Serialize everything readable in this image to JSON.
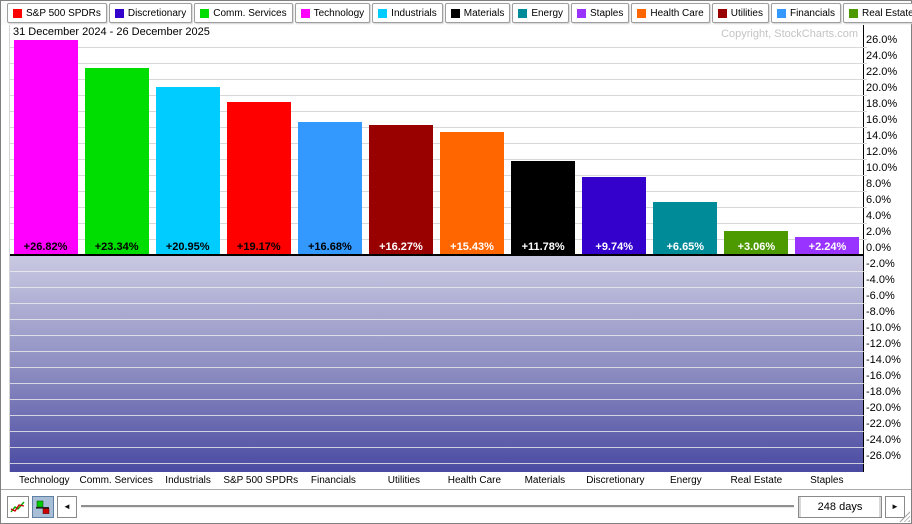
{
  "legend": {
    "items": [
      {
        "label": "S&P 500 SPDRs",
        "color": "#FF0000"
      },
      {
        "label": "Discretionary",
        "color": "#3300CC"
      },
      {
        "label": "Comm. Services",
        "color": "#00DD00"
      },
      {
        "label": "Technology",
        "color": "#FF00FF"
      },
      {
        "label": "Industrials",
        "color": "#00CCFF"
      },
      {
        "label": "Materials",
        "color": "#000000"
      },
      {
        "label": "Energy",
        "color": "#008B99"
      },
      {
        "label": "Staples",
        "color": "#9933FF"
      },
      {
        "label": "Health Care",
        "color": "#FF6600"
      },
      {
        "label": "Utilities",
        "color": "#990000"
      },
      {
        "label": "Financials",
        "color": "#3399FF"
      },
      {
        "label": "Real Estate",
        "color": "#4C9900"
      }
    ]
  },
  "chart_data": {
    "type": "bar",
    "title": "31 December 2024 - 26 December 2025",
    "copyright": "Copyright, StockCharts.com",
    "categories": [
      "Technology",
      "Comm. Services",
      "Industrials",
      "S&P 500 SPDRs",
      "Financials",
      "Utilities",
      "Health Care",
      "Materials",
      "Discretionary",
      "Energy",
      "Real Estate",
      "Staples"
    ],
    "values": [
      26.82,
      23.34,
      20.95,
      19.17,
      16.68,
      16.27,
      15.43,
      11.78,
      9.74,
      6.65,
      3.06,
      2.24
    ],
    "value_labels": [
      "+26.82%",
      "+23.34%",
      "+20.95%",
      "+19.17%",
      "+16.68%",
      "+16.27%",
      "+15.43%",
      "+11.78%",
      "+9.74%",
      "+6.65%",
      "+3.06%",
      "+2.24%"
    ],
    "bar_colors": [
      "#FF00FF",
      "#00DD00",
      "#00CCFF",
      "#FF0000",
      "#3399FF",
      "#990000",
      "#FF6600",
      "#000000",
      "#3300CC",
      "#008B99",
      "#4C9900",
      "#9933FF"
    ],
    "value_label_colors": [
      "#000000",
      "#000000",
      "#000000",
      "#000000",
      "#000000",
      "#FFFFFF",
      "#FFFFFF",
      "#FFFFFF",
      "#FFFFFF",
      "#FFFFFF",
      "#FFFFFF",
      "#FFFFFF"
    ],
    "xlabel": "",
    "ylabel": "",
    "ylim": [
      -26,
      26
    ],
    "ytick_step": 2,
    "grid": true,
    "legend_position": "top",
    "negative_area_gradient": [
      "#C9C9E2",
      "#4A4AA2"
    ],
    "yticks": [
      "26.0%",
      "24.0%",
      "22.0%",
      "20.0%",
      "18.0%",
      "16.0%",
      "14.0%",
      "12.0%",
      "10.0%",
      "8.0%",
      "6.0%",
      "4.0%",
      "2.0%",
      "0.0%",
      "-2.0%",
      "-4.0%",
      "-6.0%",
      "-8.0%",
      "-10.0%",
      "-12.0%",
      "-14.0%",
      "-16.0%",
      "-18.0%",
      "-20.0%",
      "-22.0%",
      "-24.0%",
      "-26.0%"
    ]
  },
  "footer": {
    "range_label": "248 days",
    "left_arrow_glyph": "◄",
    "right_arrow_glyph": "►",
    "icons": {
      "line_mode": "line-chart-icon",
      "histogram_mode": "histogram-icon",
      "scroll_left": "left-arrow-icon",
      "scroll_right": "right-arrow-icon",
      "resize": "resize-grip-icon"
    }
  }
}
